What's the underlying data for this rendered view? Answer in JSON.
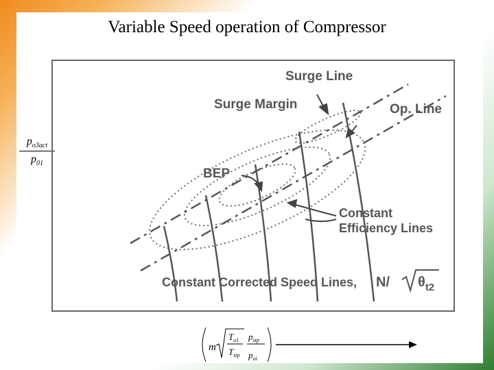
{
  "title": "Variable Speed operation of Compressor",
  "y_axis": {
    "numerator": "p",
    "numerator_sub": "o3act",
    "denominator": "p",
    "denominator_sub": "01"
  },
  "labels": {
    "surge_line": "Surge Line",
    "surge_margin": "Surge Margin",
    "op_line": "Op. Line",
    "bep": "BEP",
    "constant_efficiency_1": "Constant",
    "constant_efficiency_2": "Efficiency Lines",
    "constant_speed": "Constant Corrected Speed Lines,",
    "speed_symbol": "N/",
    "theta": "θ",
    "theta_sub": "t2"
  },
  "x_axis": {
    "m": "m",
    "T_num": "T",
    "T_num_sub": "o1",
    "T_den": "T",
    "T_den_sub": "stp",
    "p_num": "p",
    "p_num_sub": "stp",
    "p_den": "p",
    "p_den_sub": "oi"
  },
  "colors": {
    "frame": "#666666",
    "text": "#555555",
    "arrow": "#000000"
  }
}
